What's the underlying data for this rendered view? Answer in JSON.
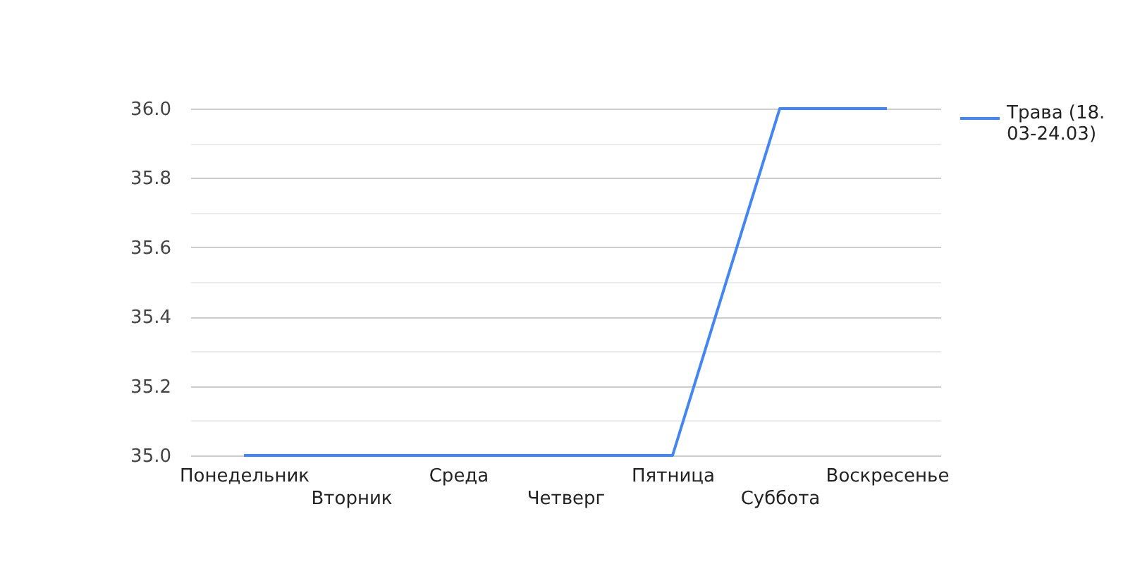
{
  "chart_data": {
    "type": "line",
    "categories": [
      "Понедельник",
      "Вторник",
      "Среда",
      "Четверг",
      "Пятница",
      "Суббота",
      "Воскресенье"
    ],
    "series": [
      {
        "name": "Трава (18.03-24.03)",
        "color": "#4285f4",
        "values": [
          35,
          35,
          35,
          35,
          35,
          36,
          36
        ]
      }
    ],
    "ylim": [
      35,
      36
    ],
    "yticks": [
      {
        "value": 35,
        "label": "35.0"
      },
      {
        "value": 35.1,
        "label": null
      },
      35.2,
      {
        "value": 35.3,
        "label": null
      },
      35.4,
      {
        "value": 35.5,
        "label": null
      },
      35.6,
      {
        "value": 35.7,
        "label": null
      },
      35.8,
      {
        "value": 35.9,
        "label": null
      },
      {
        "value": 36,
        "label": "36.0"
      }
    ],
    "grid": "y",
    "legend": "right",
    "marker": "none",
    "line_style": "solid"
  }
}
